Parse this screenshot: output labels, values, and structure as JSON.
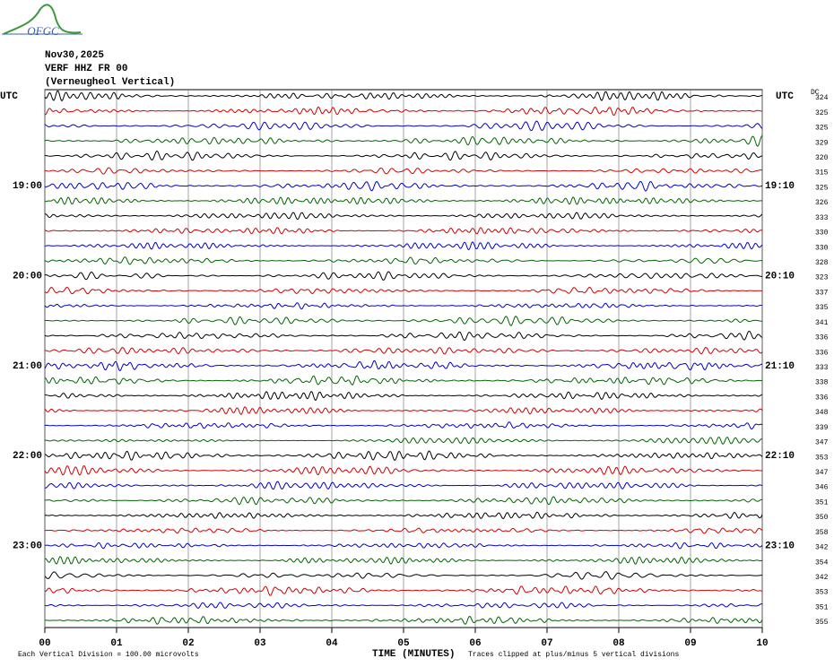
{
  "logo": "OFGC",
  "header": {
    "date": "Nov30,2025",
    "channel": "VERF HHZ FR 00",
    "station": "(Verneugheol Vertical)"
  },
  "left_axis": {
    "title": "UTC",
    "labels": [
      null,
      null,
      null,
      null,
      null,
      null,
      "19:00",
      null,
      null,
      null,
      null,
      null,
      "20:00",
      null,
      null,
      null,
      null,
      null,
      "21:00",
      null,
      null,
      null,
      null,
      null,
      "22:00",
      null,
      null,
      null,
      null,
      null,
      "23:00",
      null,
      null,
      null,
      null,
      null
    ]
  },
  "right_axis": {
    "title": "UTC",
    "labels": [
      null,
      null,
      null,
      null,
      null,
      null,
      "19:10",
      null,
      null,
      null,
      null,
      null,
      "20:10",
      null,
      null,
      null,
      null,
      null,
      "21:10",
      null,
      null,
      null,
      null,
      null,
      "22:10",
      null,
      null,
      null,
      null,
      null,
      "23:10",
      null,
      null,
      null,
      null,
      null
    ]
  },
  "dc": {
    "title": "DC",
    "values": [
      324,
      325,
      325,
      329,
      320,
      315,
      325,
      326,
      333,
      330,
      330,
      328,
      323,
      337,
      335,
      341,
      336,
      336,
      333,
      338,
      336,
      348,
      339,
      347,
      353,
      347,
      346,
      351,
      350,
      358,
      342,
      354,
      342,
      353,
      351,
      355
    ]
  },
  "trace_colors": [
    "#000000",
    "#d00000",
    "#0000c8",
    "#006400"
  ],
  "x_axis": {
    "ticks": [
      "00",
      "01",
      "02",
      "03",
      "04",
      "05",
      "06",
      "07",
      "08",
      "09",
      "10"
    ],
    "title": "TIME (MINUTES)"
  },
  "footer": {
    "scale": "Each Vertical Division =  100.00 microvolts",
    "clip": "Traces clipped at plus/minus 5 vertical divisions"
  }
}
